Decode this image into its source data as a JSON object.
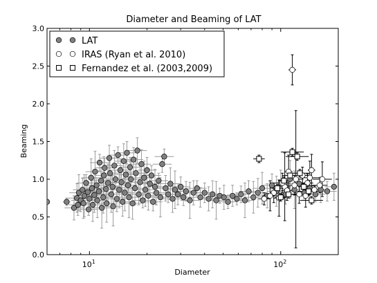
{
  "chart_data": {
    "type": "scatter",
    "title": "Diameter and Beaming of LAT",
    "xlabel": "Diameter",
    "ylabel": "Beaming",
    "xscale": "log",
    "xlim": [
      6,
      200
    ],
    "ylim": [
      0.0,
      3.0
    ],
    "x_ticks": [
      {
        "value": 10,
        "base": "10",
        "exp": "1"
      },
      {
        "value": 100,
        "base": "10",
        "exp": "2"
      }
    ],
    "y_ticks": [
      "0.0",
      "0.5",
      "1.0",
      "1.5",
      "2.0",
      "2.5",
      "3.0"
    ],
    "y_tick_values": [
      0.0,
      0.5,
      1.0,
      1.5,
      2.0,
      2.5,
      3.0
    ],
    "grid": false,
    "legend": {
      "position": "top-left",
      "entries": [
        "LAT",
        "IRAS (Ryan et al. 2010)",
        "Fernandez et al. (2003,2009)"
      ]
    },
    "series": [
      {
        "name": "LAT",
        "marker": "circle",
        "color": "#808080",
        "points": [
          [
            6.0,
            0.7,
            0.0,
            0.0
          ],
          [
            7.6,
            0.7,
            0.05,
            0.02
          ],
          [
            8.3,
            0.62,
            0.16,
            0.05
          ],
          [
            8.6,
            0.75,
            0.19,
            0.05
          ],
          [
            8.8,
            0.82,
            0.24,
            0.05
          ],
          [
            8.7,
            0.66,
            0.14,
            0.05
          ],
          [
            9.0,
            0.72,
            0.15,
            0.05
          ],
          [
            9.2,
            0.86,
            0.15,
            0.05
          ],
          [
            9.4,
            0.78,
            0.28,
            0.05
          ],
          [
            9.3,
            0.68,
            0.2,
            0.05
          ],
          [
            9.6,
            0.95,
            0.11,
            0.05
          ],
          [
            9.8,
            0.83,
            0.14,
            0.05
          ],
          [
            9.9,
            0.6,
            0.08,
            0.05
          ],
          [
            10.0,
            0.74,
            0.14,
            0.05
          ],
          [
            10.2,
            1.02,
            0.25,
            0.05
          ],
          [
            10.3,
            0.88,
            0.12,
            0.05
          ],
          [
            10.4,
            0.66,
            0.22,
            0.05
          ],
          [
            10.6,
            0.79,
            0.23,
            0.05
          ],
          [
            10.7,
            1.1,
            0.27,
            0.05
          ],
          [
            10.9,
            0.92,
            0.1,
            0.05
          ],
          [
            11.0,
            0.72,
            0.23,
            0.05
          ],
          [
            11.2,
            0.84,
            0.16,
            0.05
          ],
          [
            11.3,
            1.22,
            0.11,
            0.05
          ],
          [
            11.5,
            0.98,
            0.18,
            0.05
          ],
          [
            11.6,
            0.62,
            0.27,
            0.05
          ],
          [
            11.8,
            0.76,
            0.21,
            0.05
          ],
          [
            11.9,
            1.05,
            0.25,
            0.05
          ],
          [
            12.0,
            1.15,
            0.13,
            0.05
          ],
          [
            12.2,
            0.87,
            0.18,
            0.05
          ],
          [
            12.3,
            0.68,
            0.25,
            0.05
          ],
          [
            12.5,
            0.95,
            0.25,
            0.05
          ],
          [
            12.7,
            1.28,
            0.17,
            0.05
          ],
          [
            12.8,
            1.08,
            0.18,
            0.05
          ],
          [
            13.0,
            0.8,
            0.24,
            0.05
          ],
          [
            13.2,
            0.9,
            0.16,
            0.05
          ],
          [
            13.3,
            0.64,
            0.26,
            0.05
          ],
          [
            13.5,
            1.18,
            0.2,
            0.05
          ],
          [
            13.7,
            1.0,
            0.12,
            0.05
          ],
          [
            13.9,
            0.74,
            0.17,
            0.05
          ],
          [
            14.1,
            1.32,
            0.11,
            0.05
          ],
          [
            14.3,
            0.86,
            0.24,
            0.05
          ],
          [
            14.5,
            1.12,
            0.15,
            0.05
          ],
          [
            14.7,
            0.96,
            0.2,
            0.05
          ],
          [
            14.9,
            0.7,
            0.19,
            0.05
          ],
          [
            15.1,
            1.24,
            0.23,
            0.05
          ],
          [
            15.3,
            0.82,
            0.24,
            0.05
          ],
          [
            15.5,
            1.06,
            0.16,
            0.05
          ],
          [
            15.7,
            1.35,
            0.15,
            0.05
          ],
          [
            15.9,
            0.92,
            0.18,
            0.05
          ],
          [
            16.1,
            0.76,
            0.27,
            0.05
          ],
          [
            16.3,
            1.16,
            0.13,
            0.05
          ],
          [
            16.5,
            1.0,
            0.25,
            0.05
          ],
          [
            16.8,
            0.68,
            0.21,
            0.05
          ],
          [
            17.0,
            1.26,
            0.16,
            0.05
          ],
          [
            17.3,
            0.88,
            0.22,
            0.05
          ],
          [
            17.5,
            1.08,
            0.2,
            0.05
          ],
          [
            17.8,
            1.38,
            0.17,
            0.05
          ],
          [
            18.1,
            0.8,
            0.14,
            0.05
          ],
          [
            18.4,
            0.96,
            0.25,
            0.05
          ],
          [
            18.7,
            1.2,
            0.19,
            0.05
          ],
          [
            19.0,
            0.72,
            0.1,
            0.05
          ],
          [
            19.3,
            1.02,
            0.22,
            0.05
          ],
          [
            19.6,
            0.86,
            0.22,
            0.05
          ],
          [
            20.0,
            1.12,
            0.17,
            0.05
          ],
          [
            20.3,
            0.78,
            0.19,
            0.05
          ],
          [
            20.7,
            0.94,
            0.12,
            0.05
          ],
          [
            21.1,
            1.05,
            0.13,
            0.05
          ],
          [
            21.5,
            0.7,
            0.12,
            0.05
          ],
          [
            22.0,
            0.9,
            0.23,
            0.05
          ],
          [
            22.4,
            0.82,
            0.16,
            0.05
          ],
          [
            23.0,
            0.98,
            0.1,
            0.05
          ],
          [
            23.5,
            0.76,
            0.26,
            0.05
          ],
          [
            24.0,
            1.2,
            0.11,
            0.05
          ],
          [
            24.6,
            1.3,
            0.1,
            0.05
          ],
          [
            25.0,
            0.88,
            0.17,
            0.05
          ],
          [
            25.8,
            0.8,
            0.11,
            0.05
          ],
          [
            26.5,
            0.94,
            0.21,
            0.05
          ],
          [
            27.2,
            0.74,
            0.18,
            0.05
          ],
          [
            28.0,
            0.86,
            0.25,
            0.05
          ],
          [
            29.0,
            0.8,
            0.14,
            0.05
          ],
          [
            30.0,
            0.9,
            0.13,
            0.05
          ],
          [
            31.0,
            0.76,
            0.11,
            0.05
          ],
          [
            32.0,
            0.84,
            0.13,
            0.05
          ],
          [
            33.5,
            0.72,
            0.24,
            0.05
          ],
          [
            35.0,
            0.82,
            0.16,
            0.05
          ],
          [
            36.5,
            0.88,
            0.1,
            0.05
          ],
          [
            38.0,
            0.76,
            0.13,
            0.05
          ],
          [
            40.0,
            0.82,
            0.13,
            0.05
          ],
          [
            42.0,
            0.74,
            0.16,
            0.05
          ],
          [
            44.0,
            0.8,
            0.18,
            0.05
          ],
          [
            46.0,
            0.72,
            0.25,
            0.05
          ],
          [
            48.0,
            0.78,
            0.1,
            0.05
          ],
          [
            50.5,
            0.76,
            0.16,
            0.05
          ],
          [
            53.0,
            0.7,
            0.09,
            0.05
          ],
          [
            56.0,
            0.78,
            0.14,
            0.05
          ],
          [
            59.0,
            0.74,
            0.08,
            0.05
          ],
          [
            62.0,
            0.8,
            0.11,
            0.05
          ],
          [
            65.0,
            0.72,
            0.23,
            0.05
          ],
          [
            68.0,
            0.84,
            0.14,
            0.05
          ],
          [
            72.0,
            0.76,
            0.21,
            0.05
          ],
          [
            76.0,
            0.82,
            0.19,
            0.05
          ],
          [
            80.0,
            0.88,
            0.21,
            0.05
          ],
          [
            85.0,
            0.78,
            0.16,
            0.05
          ],
          [
            90.0,
            0.92,
            0.15,
            0.05
          ],
          [
            95.0,
            0.84,
            0.2,
            0.05
          ],
          [
            100.0,
            0.95,
            0.17,
            0.05
          ],
          [
            106.0,
            0.8,
            0.13,
            0.05
          ],
          [
            112.0,
            1.0,
            0.25,
            0.05
          ],
          [
            118.0,
            0.86,
            0.25,
            0.05
          ],
          [
            125.0,
            0.94,
            0.11,
            0.05
          ],
          [
            133.0,
            0.82,
            0.08,
            0.05
          ],
          [
            142.0,
            0.88,
            0.14,
            0.05
          ],
          [
            152.0,
            0.8,
            0.1,
            0.05
          ],
          [
            162.0,
            0.86,
            0.17,
            0.05
          ],
          [
            175.0,
            0.84,
            0.13,
            0.05
          ],
          [
            190.0,
            0.9,
            0.18,
            0.05
          ]
        ]
      },
      {
        "name": "IRAS (Ryan et al. 2010)",
        "marker": "open-circle",
        "color": "#ffffff",
        "points": [
          [
            115.0,
            2.45,
            0.2,
            0.02
          ],
          [
            120.0,
            1.0,
            0.91,
            0.04
          ],
          [
            98.0,
            0.75,
            0.24,
            0.03
          ],
          [
            105.0,
            0.9,
            0.45,
            0.03
          ],
          [
            110.0,
            1.1,
            0.22,
            0.02
          ],
          [
            125.0,
            0.8,
            0.12,
            0.04
          ],
          [
            130.0,
            1.05,
            0.11,
            0.04
          ],
          [
            138.0,
            0.95,
            0.12,
            0.03
          ],
          [
            145.0,
            1.12,
            0.21,
            0.02
          ],
          [
            150.0,
            0.86,
            0.05,
            0.05
          ],
          [
            160.0,
            0.92,
            0.1,
            0.04
          ],
          [
            165.0,
            1.0,
            0.23,
            0.05
          ],
          [
            92.0,
            0.82,
            0.13,
            0.02
          ],
          [
            88.0,
            0.78,
            0.2,
            0.04
          ],
          [
            102.0,
            0.95,
            0.13,
            0.04
          ],
          [
            108.0,
            0.85,
            0.13,
            0.03
          ],
          [
            118.0,
            0.92,
            0.13,
            0.04
          ],
          [
            135.0,
            0.78,
            0.15,
            0.02
          ],
          [
            142.0,
            1.02,
            0.22,
            0.05
          ],
          [
            82.0,
            0.74,
            0.08,
            0.03
          ]
        ]
      },
      {
        "name": "Fernandez et al. (2003,2009)",
        "marker": "open-square",
        "color": "#ffffff",
        "points": [
          [
            77.0,
            1.27,
            0.05,
            0.03
          ],
          [
            115.0,
            1.36,
            0.05,
            0.06
          ],
          [
            122.0,
            1.3,
            0.05,
            0.06
          ],
          [
            96.0,
            0.88,
            0.05,
            0.03
          ],
          [
            104.0,
            0.98,
            0.05,
            0.03
          ],
          [
            110.0,
            0.8,
            0.05,
            0.04
          ],
          [
            126.0,
            1.08,
            0.05,
            0.05
          ],
          [
            132.0,
            0.9,
            0.05,
            0.03
          ],
          [
            145.0,
            0.72,
            0.05,
            0.06
          ],
          [
            100.0,
            0.76,
            0.05,
            0.03
          ],
          [
            112.0,
            1.05,
            0.05,
            0.04
          ],
          [
            140.0,
            0.84,
            0.05,
            0.06
          ]
        ]
      }
    ]
  }
}
